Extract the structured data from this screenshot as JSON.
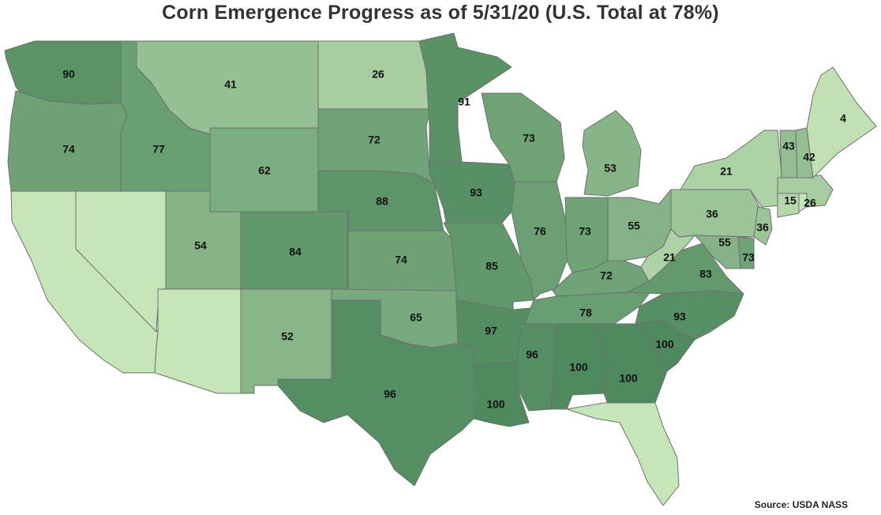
{
  "title": "Corn Emergence Progress as of 5/31/20 (U.S. Total at 78%)",
  "source": "Source: USDA NASS",
  "color_scale": {
    "low": "#c6e5b8",
    "high": "#4f8a5e",
    "min": 0,
    "max": 100
  },
  "chart_data": {
    "type": "choropleth",
    "metric": "Corn emergence progress (%)",
    "states": [
      {
        "state": "WA",
        "value": 90
      },
      {
        "state": "OR",
        "value": 74
      },
      {
        "state": "CA",
        "value": null
      },
      {
        "state": "NV",
        "value": null
      },
      {
        "state": "ID",
        "value": 77
      },
      {
        "state": "MT",
        "value": 41
      },
      {
        "state": "WY",
        "value": 62
      },
      {
        "state": "UT",
        "value": 54
      },
      {
        "state": "AZ",
        "value": null
      },
      {
        "state": "CO",
        "value": 84
      },
      {
        "state": "NM",
        "value": 52
      },
      {
        "state": "ND",
        "value": 26
      },
      {
        "state": "SD",
        "value": 72
      },
      {
        "state": "NE",
        "value": 88
      },
      {
        "state": "KS",
        "value": 74
      },
      {
        "state": "OK",
        "value": 65
      },
      {
        "state": "TX",
        "value": 96
      },
      {
        "state": "MN",
        "value": 91
      },
      {
        "state": "IA",
        "value": 93
      },
      {
        "state": "MO",
        "value": 85
      },
      {
        "state": "AR",
        "value": 97
      },
      {
        "state": "LA",
        "value": 100
      },
      {
        "state": "WI",
        "value": 73
      },
      {
        "state": "IL",
        "value": 76
      },
      {
        "state": "MI",
        "value": 53
      },
      {
        "state": "IN",
        "value": 73
      },
      {
        "state": "OH",
        "value": 55
      },
      {
        "state": "KY",
        "value": 72
      },
      {
        "state": "TN",
        "value": 78
      },
      {
        "state": "MS",
        "value": 96
      },
      {
        "state": "AL",
        "value": 100
      },
      {
        "state": "GA",
        "value": 100
      },
      {
        "state": "FL",
        "value": null
      },
      {
        "state": "SC",
        "value": 100
      },
      {
        "state": "NC",
        "value": 93
      },
      {
        "state": "VA",
        "value": 83
      },
      {
        "state": "WV",
        "value": 21
      },
      {
        "state": "PA",
        "value": 36
      },
      {
        "state": "NY",
        "value": 21
      },
      {
        "state": "NJ",
        "value": 36
      },
      {
        "state": "DE",
        "value": 73
      },
      {
        "state": "MD",
        "value": 55
      },
      {
        "state": "CT",
        "value": 15
      },
      {
        "state": "RI",
        "value": null
      },
      {
        "state": "MA",
        "value": 26
      },
      {
        "state": "VT",
        "value": 43
      },
      {
        "state": "NH",
        "value": 42
      },
      {
        "state": "ME",
        "value": 4
      }
    ]
  }
}
